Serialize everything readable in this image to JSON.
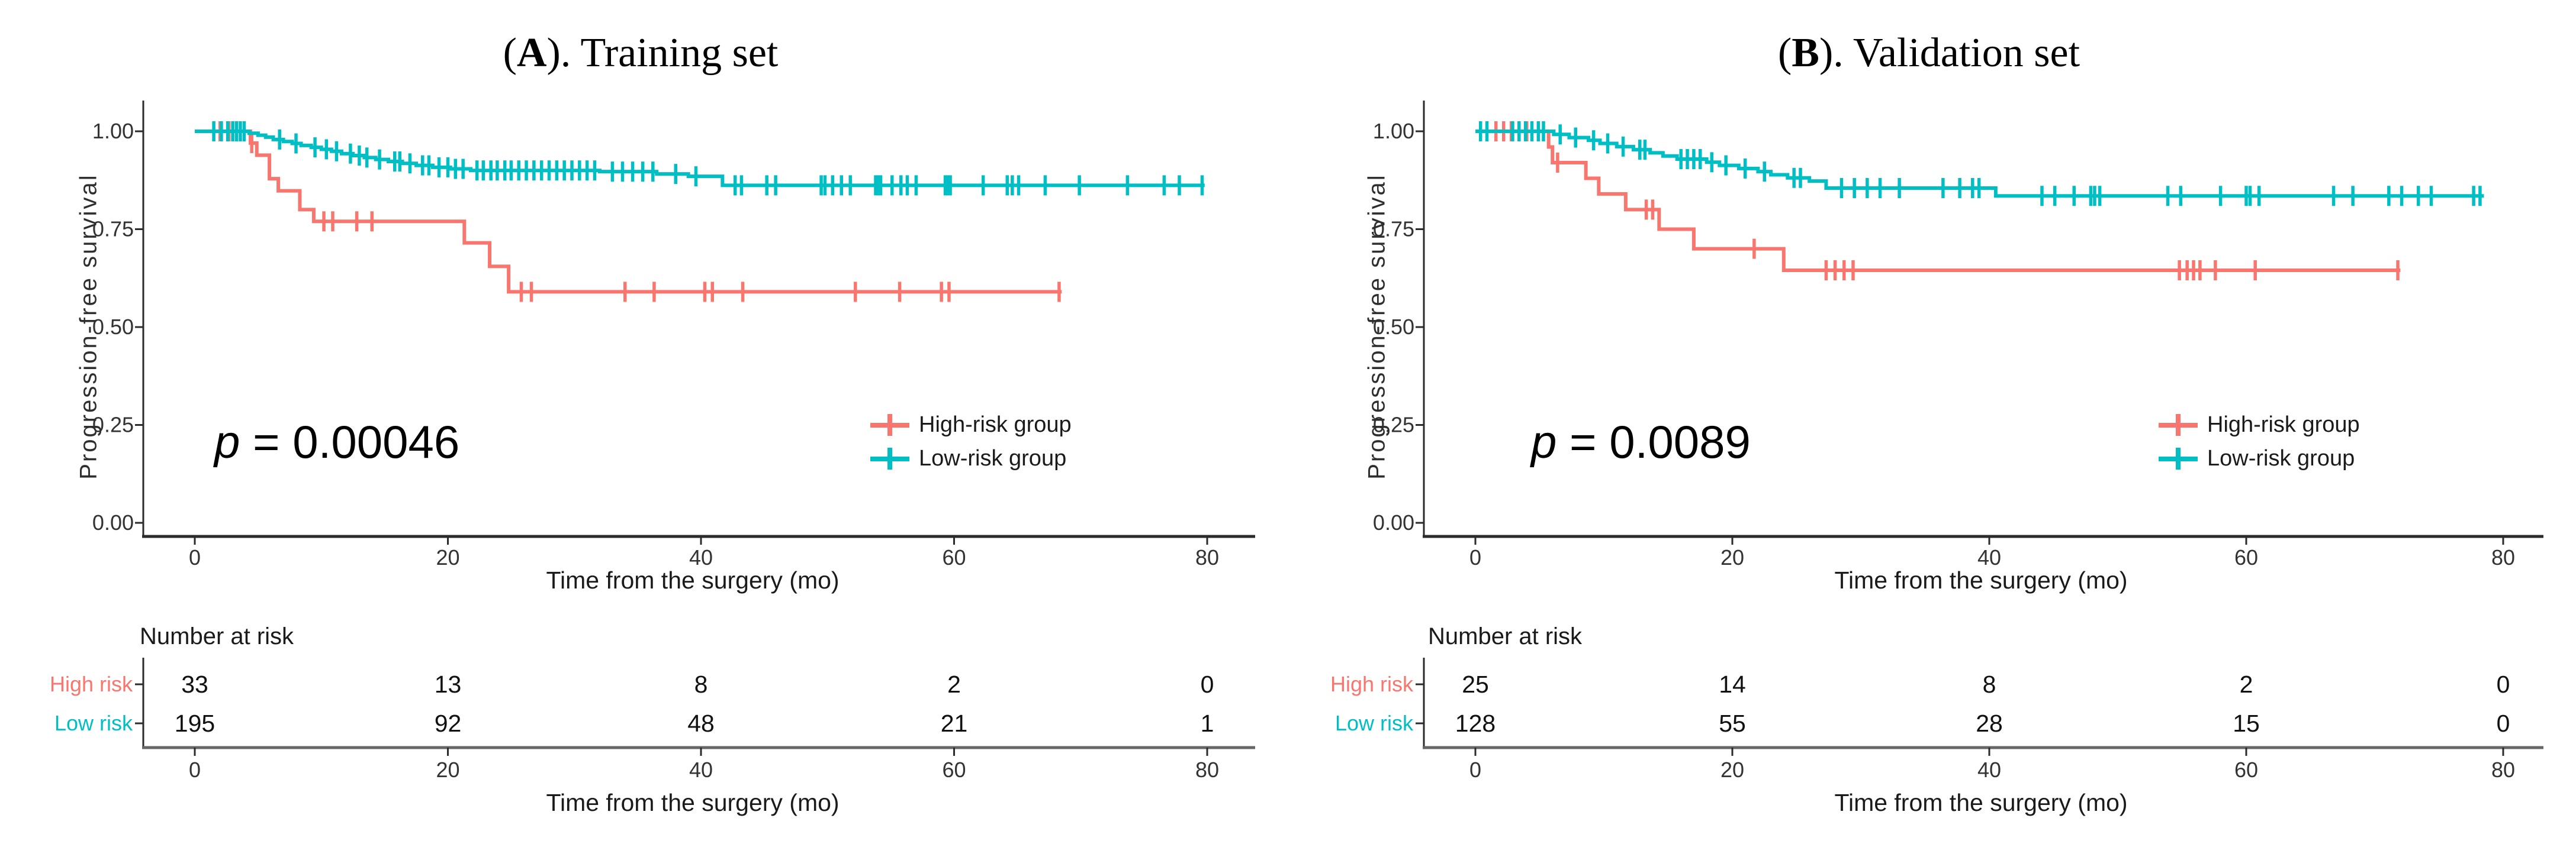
{
  "figure": {
    "background": "#ffffff"
  },
  "chart_data": [
    {
      "type": "line",
      "subtype": "kaplan_meier_step",
      "panel_label": "A",
      "title": "(A). Training set",
      "title_prefix": "(",
      "title_letter": "A",
      "title_suffix": "). Training set",
      "pvalue": "p = 0.00046",
      "pvalue_sym": "p",
      "pvalue_rest": " = 0.00046",
      "xlabel": "Time from the surgery (mo)",
      "ylabel": "Progression-free survival",
      "xlim": [
        0,
        80
      ],
      "ylim": [
        0.0,
        1.0
      ],
      "xticks": [
        0,
        20,
        40,
        60,
        80
      ],
      "yticks": [
        1.0,
        0.75,
        0.5,
        0.25,
        0.0
      ],
      "ytick_labels": [
        "1.00",
        "0.75",
        "0.50",
        "0.25",
        "0.00"
      ],
      "grid": false,
      "legend_position": "inside-right-middle",
      "series": [
        {
          "name": "High-risk group",
          "color": "#F8766D",
          "steps": [
            [
              0,
              1.0
            ],
            [
              4.4,
              0.97
            ],
            [
              4.9,
              0.939
            ],
            [
              5.9,
              0.879
            ],
            [
              6.6,
              0.848
            ],
            [
              8.3,
              0.8
            ],
            [
              9.4,
              0.77
            ],
            [
              21.3,
              0.715
            ],
            [
              23.3,
              0.655
            ],
            [
              24.8,
              0.59
            ],
            [
              68.5,
              0.59
            ]
          ],
          "censor_times": [
            2.0,
            2.7,
            3.3,
            4.5,
            10.2,
            10.9,
            12.8,
            14.0,
            25.8,
            26.6,
            34.0,
            36.3,
            40.3,
            40.9,
            43.3,
            52.2,
            55.7,
            59.0,
            59.6,
            68.3
          ]
        },
        {
          "name": "Low-risk group",
          "color": "#00BFC4",
          "steps": [
            [
              0,
              1.0
            ],
            [
              4.3,
              0.995
            ],
            [
              5.0,
              0.99
            ],
            [
              5.6,
              0.985
            ],
            [
              6.2,
              0.979
            ],
            [
              7.0,
              0.974
            ],
            [
              7.7,
              0.969
            ],
            [
              8.4,
              0.964
            ],
            [
              9.2,
              0.959
            ],
            [
              10.0,
              0.954
            ],
            [
              10.8,
              0.949
            ],
            [
              11.6,
              0.943
            ],
            [
              12.5,
              0.938
            ],
            [
              13.4,
              0.933
            ],
            [
              14.3,
              0.928
            ],
            [
              15.3,
              0.923
            ],
            [
              16.4,
              0.918
            ],
            [
              17.5,
              0.913
            ],
            [
              18.8,
              0.908
            ],
            [
              20.2,
              0.904
            ],
            [
              21.8,
              0.9
            ],
            [
              32.0,
              0.897
            ],
            [
              36.5,
              0.891
            ],
            [
              39.0,
              0.885
            ],
            [
              41.7,
              0.862
            ],
            [
              79.8,
              0.862
            ]
          ],
          "censor_times": [
            1.5,
            2.1,
            2.6,
            3.0,
            3.3,
            3.6,
            3.9,
            6.7,
            8.0,
            9.5,
            10.4,
            11.2,
            12.3,
            13.0,
            13.6,
            14.6,
            15.8,
            16.2,
            17.0,
            18.0,
            18.5,
            19.3,
            20.0,
            20.6,
            21.2,
            22.3,
            22.8,
            23.4,
            23.9,
            24.5,
            25.0,
            25.6,
            26.2,
            26.8,
            27.4,
            28.0,
            28.6,
            29.2,
            29.8,
            30.4,
            31.0,
            31.6,
            33.0,
            33.8,
            34.6,
            35.4,
            36.2,
            38.0,
            39.6,
            42.7,
            43.2,
            45.2,
            45.9,
            49.5,
            49.8,
            50.4,
            51.1,
            51.8,
            53.8,
            54.0,
            54.2,
            55.1,
            55.8,
            56.3,
            57.0,
            59.3,
            59.5,
            59.7,
            62.3,
            64.2,
            64.6,
            65.1,
            67.2,
            69.9,
            73.7,
            76.6,
            77.8,
            79.6
          ]
        }
      ],
      "number_at_risk": {
        "title": "Number at risk",
        "times": [
          0,
          20,
          40,
          60,
          80
        ],
        "rows": [
          {
            "label": "High risk",
            "values": [
              33,
              13,
              8,
              2,
              0
            ]
          },
          {
            "label": "Low risk",
            "values": [
              195,
              92,
              48,
              21,
              1
            ]
          }
        ]
      }
    },
    {
      "type": "line",
      "subtype": "kaplan_meier_step",
      "panel_label": "B",
      "title": "(B). Validation set",
      "title_prefix": "(",
      "title_letter": "B",
      "title_suffix": "). Validation set",
      "pvalue": "p = 0.0089",
      "pvalue_sym": "p",
      "pvalue_rest": " = 0.0089",
      "xlabel": "Time from the surgery (mo)",
      "ylabel": "Progression-free survival",
      "xlim": [
        0,
        80
      ],
      "ylim": [
        0.0,
        1.0
      ],
      "xticks": [
        0,
        20,
        40,
        60,
        80
      ],
      "yticks": [
        1.0,
        0.75,
        0.5,
        0.25,
        0.0
      ],
      "ytick_labels": [
        "1.00",
        "0.75",
        "0.50",
        "0.25",
        "0.00"
      ],
      "grid": false,
      "legend_position": "inside-right-middle",
      "series": [
        {
          "name": "High-risk group",
          "color": "#F8766D",
          "steps": [
            [
              0,
              1.0
            ],
            [
              5.7,
              0.96
            ],
            [
              6.0,
              0.92
            ],
            [
              8.6,
              0.88
            ],
            [
              9.6,
              0.84
            ],
            [
              11.7,
              0.8
            ],
            [
              14.3,
              0.75
            ],
            [
              17.0,
              0.7
            ],
            [
              24.0,
              0.645
            ],
            [
              72.0,
              0.645
            ]
          ],
          "censor_times": [
            1.6,
            2.2,
            2.8,
            3.4,
            4.0,
            6.4,
            13.3,
            13.8,
            21.7,
            27.3,
            28.0,
            28.7,
            29.4,
            54.8,
            55.4,
            55.9,
            56.4,
            57.6,
            60.7,
            71.8
          ]
        },
        {
          "name": "Low-risk group",
          "color": "#00BFC4",
          "steps": [
            [
              0,
              1.0
            ],
            [
              6.1,
              0.992
            ],
            [
              7.3,
              0.984
            ],
            [
              8.8,
              0.977
            ],
            [
              9.7,
              0.969
            ],
            [
              11.0,
              0.961
            ],
            [
              12.3,
              0.953
            ],
            [
              13.6,
              0.945
            ],
            [
              14.6,
              0.937
            ],
            [
              15.7,
              0.929
            ],
            [
              18.0,
              0.921
            ],
            [
              19.0,
              0.913
            ],
            [
              20.5,
              0.905
            ],
            [
              22.0,
              0.897
            ],
            [
              23.0,
              0.889
            ],
            [
              24.3,
              0.881
            ],
            [
              26.0,
              0.873
            ],
            [
              27.3,
              0.855
            ],
            [
              40.5,
              0.835
            ],
            [
              78.5,
              0.835
            ]
          ],
          "censor_times": [
            0.4,
            0.9,
            2.9,
            3.4,
            3.9,
            4.4,
            4.9,
            5.3,
            6.6,
            7.8,
            9.2,
            10.3,
            11.5,
            12.8,
            13.2,
            16.0,
            16.5,
            17.0,
            17.5,
            18.4,
            19.5,
            21.0,
            22.5,
            24.8,
            25.3,
            28.5,
            29.5,
            30.5,
            31.5,
            33.0,
            36.4,
            37.7,
            38.7,
            39.2,
            44.1,
            45.1,
            46.6,
            47.9,
            48.2,
            48.6,
            53.9,
            54.9,
            58.0,
            60.0,
            60.3,
            61.0,
            66.8,
            68.3,
            71.1,
            72.1,
            73.4,
            74.4,
            77.7,
            78.2
          ]
        }
      ],
      "number_at_risk": {
        "title": "Number at risk",
        "times": [
          0,
          20,
          40,
          60,
          80
        ],
        "rows": [
          {
            "label": "High risk",
            "values": [
              25,
              14,
              8,
              2,
              0
            ]
          },
          {
            "label": "Low risk",
            "values": [
              128,
              55,
              28,
              15,
              0
            ]
          }
        ]
      }
    }
  ]
}
